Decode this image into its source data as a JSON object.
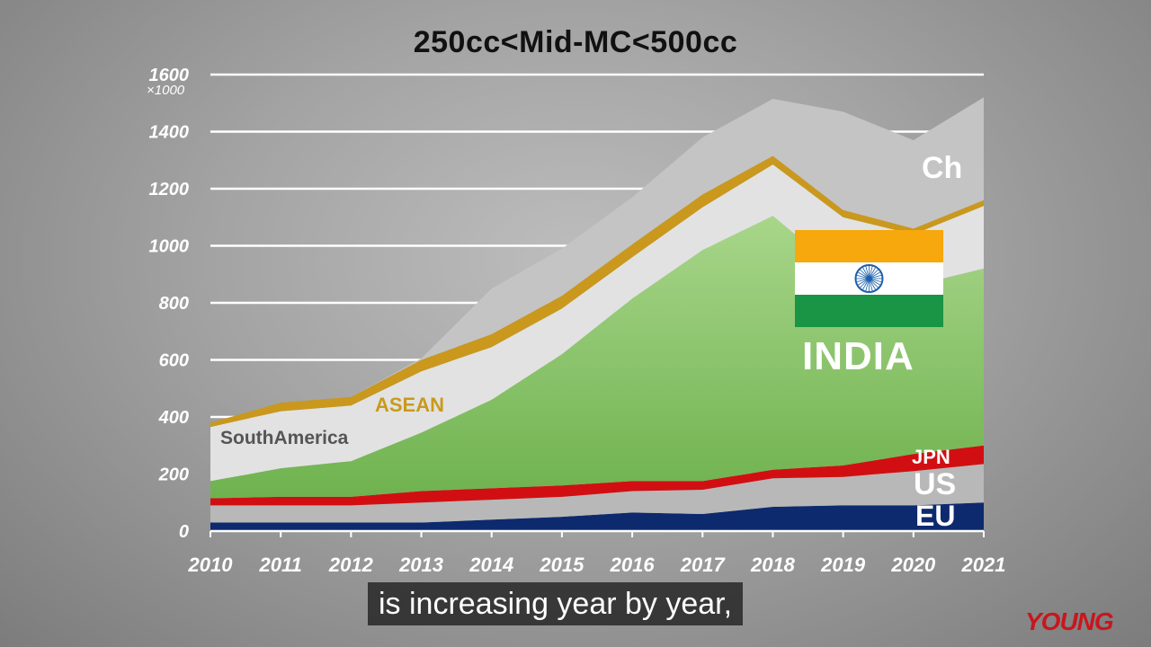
{
  "chart_data": {
    "type": "area",
    "stacked": true,
    "title": "250cc<Mid-MC<500cc",
    "y_unit": "×1000",
    "ylim": [
      0,
      1600
    ],
    "y_ticks": [
      "0",
      "200",
      "400",
      "600",
      "800",
      "1000",
      "1200",
      "1400",
      "1600"
    ],
    "x": [
      "2010",
      "2011",
      "2012",
      "2013",
      "2014",
      "2015",
      "2016",
      "2017",
      "2018",
      "2019",
      "2020",
      "2021"
    ],
    "grid": true,
    "series": [
      {
        "name": "EU",
        "color": "#0e2a6e",
        "values": [
          30,
          30,
          30,
          30,
          40,
          50,
          65,
          60,
          85,
          90,
          90,
          100
        ]
      },
      {
        "name": "US",
        "color": "#b8b8b8",
        "values": [
          60,
          60,
          60,
          70,
          70,
          70,
          75,
          85,
          100,
          100,
          120,
          135
        ]
      },
      {
        "name": "JPN",
        "color": "#d10f12",
        "values": [
          25,
          30,
          30,
          40,
          40,
          40,
          35,
          30,
          30,
          40,
          60,
          65
        ]
      },
      {
        "name": "INDIA",
        "color": "#8fc971",
        "values": [
          60,
          100,
          125,
          205,
          310,
          460,
          640,
          810,
          890,
          670,
          590,
          620
        ]
      },
      {
        "name": "SouthAmerica",
        "color": "#e2e2e2",
        "values": [
          190,
          200,
          195,
          215,
          185,
          160,
          145,
          150,
          180,
          200,
          180,
          220
        ]
      },
      {
        "name": "ASEAN",
        "color": "#c9981d",
        "values": [
          15,
          30,
          30,
          40,
          45,
          45,
          45,
          45,
          30,
          25,
          20,
          20
        ]
      },
      {
        "name": "Ch",
        "color": "#c4c4c4",
        "values": [
          0,
          0,
          0,
          5,
          160,
          165,
          165,
          200,
          200,
          345,
          310,
          360
        ]
      }
    ],
    "labels": {
      "ch": "Ch",
      "asean": "ASEAN",
      "south_america": "SouthAmerica",
      "india": "INDIA",
      "jpn": "JPN",
      "us": "US",
      "eu": "EU"
    },
    "flag": {
      "top": "#f6a80c",
      "middle": "#ffffff",
      "bottom": "#1a9445",
      "wheel": "#1b5faa"
    }
  },
  "caption": "is increasing year by year,",
  "watermark": "YOUNG"
}
